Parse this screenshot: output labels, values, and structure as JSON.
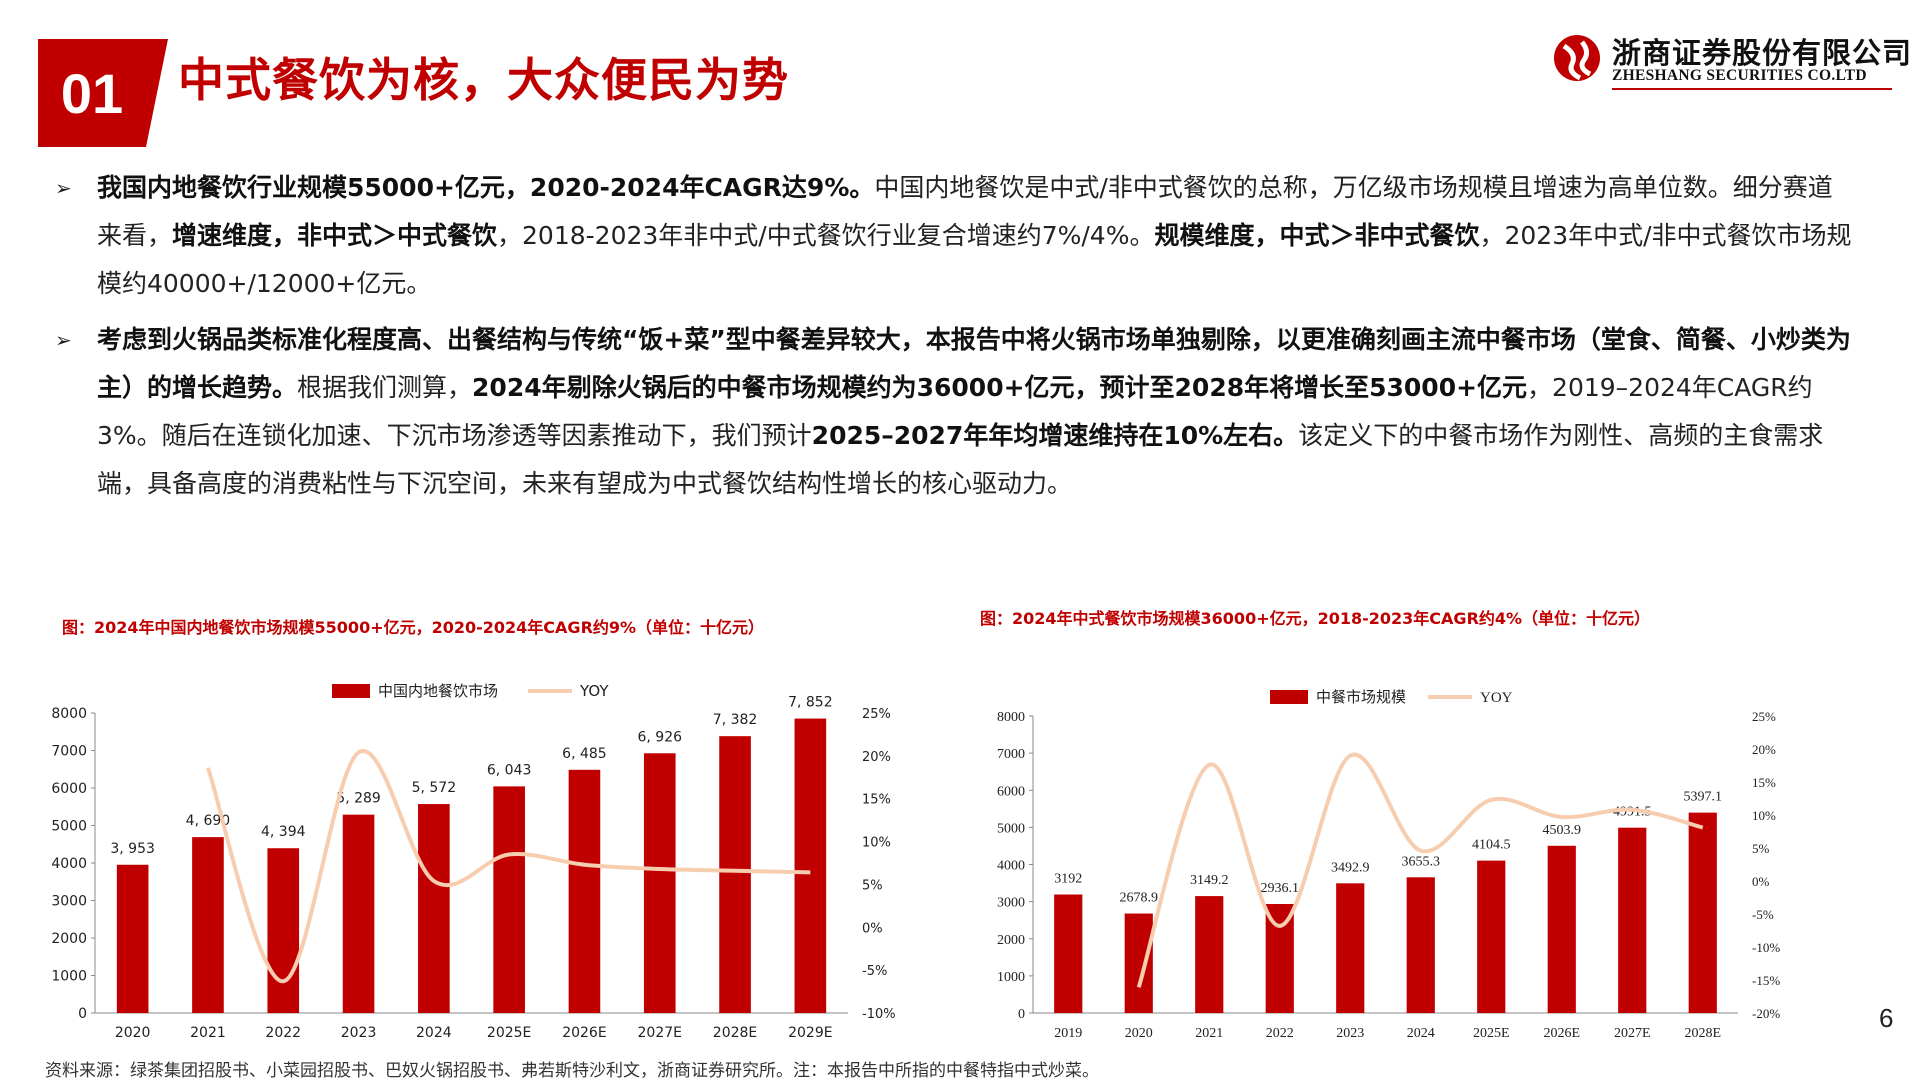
{
  "header": {
    "section_number": "01",
    "title": "中式餐饮为核，大众便民为势",
    "logo_cn": "浙商证券股份有限公司",
    "logo_en": "ZHESHANG SECURITIES CO.LTD"
  },
  "bullets": [
    {
      "parts": [
        {
          "text": "我国内地餐饮行业规模55000+亿元，2020-2024年CAGR达9%。",
          "bold": true
        },
        {
          "text": "中国内地餐饮是中式/非中式餐饮的总称，万亿级市场规模且增速为高单位数。细分赛道来看，",
          "bold": false
        },
        {
          "text": "增速维度，非中式＞中式餐饮",
          "bold": true
        },
        {
          "text": "，2018-2023年非中式/中式餐饮行业复合增速约7%/4%。",
          "bold": false
        },
        {
          "text": "规模维度，中式＞非中式餐饮",
          "bold": true
        },
        {
          "text": "，2023年中式/非中式餐饮市场规模约40000+/12000+亿元。",
          "bold": false
        }
      ]
    },
    {
      "parts": [
        {
          "text": "考虑到火锅品类标准化程度高、出餐结构与传统“饭+菜”型中餐差异较大，本报告中将火锅市场单独剔除，以更准确刻画主流中餐市场（堂食、简餐、小炒类为主）的增长趋势。",
          "bold": true
        },
        {
          "text": "根据我们测算，",
          "bold": false
        },
        {
          "text": "2024年剔除火锅后的中餐市场规模约为36000+亿元，预计至2028年将增长至53000+亿元",
          "bold": true
        },
        {
          "text": "，2019–2024年CAGR约3%。随后在连锁化加速、下沉市场渗透等因素推动下，我们预计",
          "bold": false
        },
        {
          "text": "2025–2027年年均增速维持在10%左右。",
          "bold": true
        },
        {
          "text": "该定义下的中餐市场作为刚性、高频的主食需求端，具备高度的消费粘性与下沉空间，未来有望成为中式餐饮结构性增长的核心驱动力。",
          "bold": false
        }
      ]
    }
  ],
  "chart_data": [
    {
      "type": "bar",
      "title": "图：2024年中国内地餐饮市场规模55000+亿元，2020-2024年CAGR约9%（单位：十亿元）",
      "categories": [
        "2020",
        "2021",
        "2022",
        "2023",
        "2024",
        "2025E",
        "2026E",
        "2027E",
        "2028E",
        "2029E"
      ],
      "series": [
        {
          "name": "中国内地餐饮市场",
          "type": "bar",
          "axis": "left",
          "values": [
            3953,
            4690,
            4394,
            5289,
            5572,
            6043,
            6485,
            6926,
            7382,
            7852
          ],
          "labels": [
            "3, 953",
            "4, 690",
            "4, 394",
            "5, 289",
            "5, 572",
            "6, 043",
            "6, 485",
            "6, 926",
            "7, 382",
            "7, 852"
          ]
        },
        {
          "name": "YOY",
          "type": "line",
          "axis": "right",
          "values": [
            null,
            18.6,
            -6.3,
            20.4,
            5.4,
            8.5,
            7.3,
            6.8,
            6.6,
            6.4
          ]
        }
      ],
      "ylim": [
        0,
        8000
      ],
      "yticks": [
        "0",
        "1000",
        "2000",
        "3000",
        "4000",
        "5000",
        "6000",
        "7000",
        "8000"
      ],
      "y2lim": [
        -10,
        25
      ],
      "y2ticks": [
        "-10%",
        "-5%",
        "0%",
        "5%",
        "10%",
        "15%",
        "20%",
        "25%"
      ],
      "legend": "top",
      "grid": false,
      "colors": {
        "bar": "#c00000",
        "line": "#f7cdb0"
      }
    },
    {
      "type": "bar",
      "title": "图：2024年中式餐饮市场规模36000+亿元，2018-2023年CAGR约4%（单位：十亿元）",
      "categories": [
        "2019",
        "2020",
        "2021",
        "2022",
        "2023",
        "2024",
        "2025E",
        "2026E",
        "2027E",
        "2028E"
      ],
      "series": [
        {
          "name": "中餐市场规模",
          "type": "bar",
          "axis": "left",
          "values": [
            3192,
            2678.9,
            3149.2,
            2936.1,
            3492.9,
            3655.3,
            4104.5,
            4503.9,
            4991.5,
            5397.1
          ],
          "labels": [
            "3192",
            "2678.9",
            "3149.2",
            "2936.1",
            "3492.9",
            "3655.3",
            "4104.5",
            "4503.9",
            "4991.5",
            "5397.1"
          ]
        },
        {
          "name": "YOY",
          "type": "line",
          "axis": "right",
          "values": [
            null,
            -16.1,
            17.6,
            -6.8,
            19.0,
            4.6,
            12.3,
            9.7,
            10.8,
            8.1
          ]
        }
      ],
      "ylim": [
        0,
        8000
      ],
      "yticks": [
        "0",
        "1000",
        "2000",
        "3000",
        "4000",
        "5000",
        "6000",
        "7000",
        "8000"
      ],
      "y2lim": [
        -20,
        25
      ],
      "y2ticks": [
        "-20%",
        "-15%",
        "-10%",
        "-5%",
        "0%",
        "5%",
        "10%",
        "15%",
        "20%",
        "25%"
      ],
      "legend": "top",
      "grid": false,
      "colors": {
        "bar": "#c00000",
        "line": "#f7cdb0"
      }
    }
  ],
  "footer": {
    "source": "资料来源：绿茶集团招股书、小菜园招股书、巴奴火锅招股书、弗若斯特沙利文，浙商证券研究所。注：本报告中所指的中餐特指中式炒菜。",
    "page_number": "6"
  }
}
